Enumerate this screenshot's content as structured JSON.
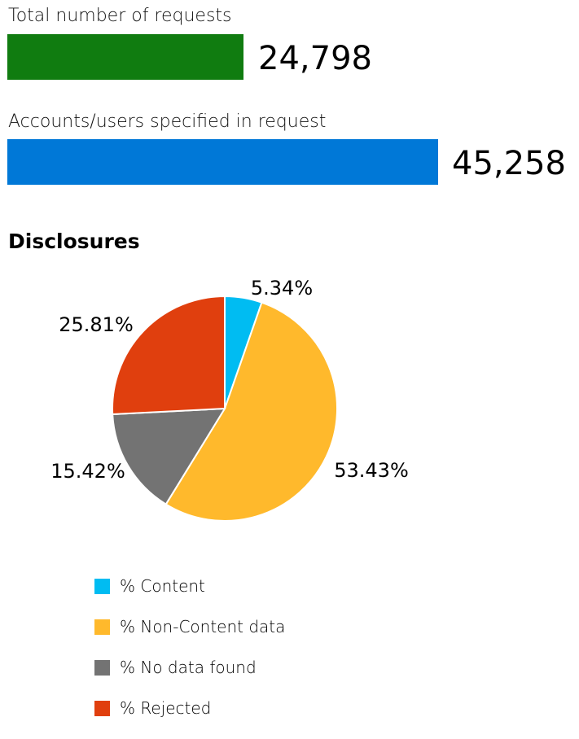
{
  "metrics": [
    {
      "label": "Total number of requests",
      "value": "24,798",
      "color": "#107c10"
    },
    {
      "label": "Accounts/users specified in request",
      "value": "45,258",
      "color": "#0078d7"
    }
  ],
  "section_title": "Disclosures",
  "chart_data": {
    "type": "pie",
    "title": "Disclosures",
    "categories": [
      "% Content",
      "% Non-Content data",
      "% No data found",
      "% Rejected"
    ],
    "values": [
      5.34,
      53.43,
      15.42,
      25.81
    ],
    "labels": [
      "5.34%",
      "53.43%",
      "15.42%",
      "25.81%"
    ],
    "colors": [
      "#00bcf2",
      "#ffb92c",
      "#737373",
      "#e03f0e"
    ],
    "legend_position": "bottom"
  }
}
